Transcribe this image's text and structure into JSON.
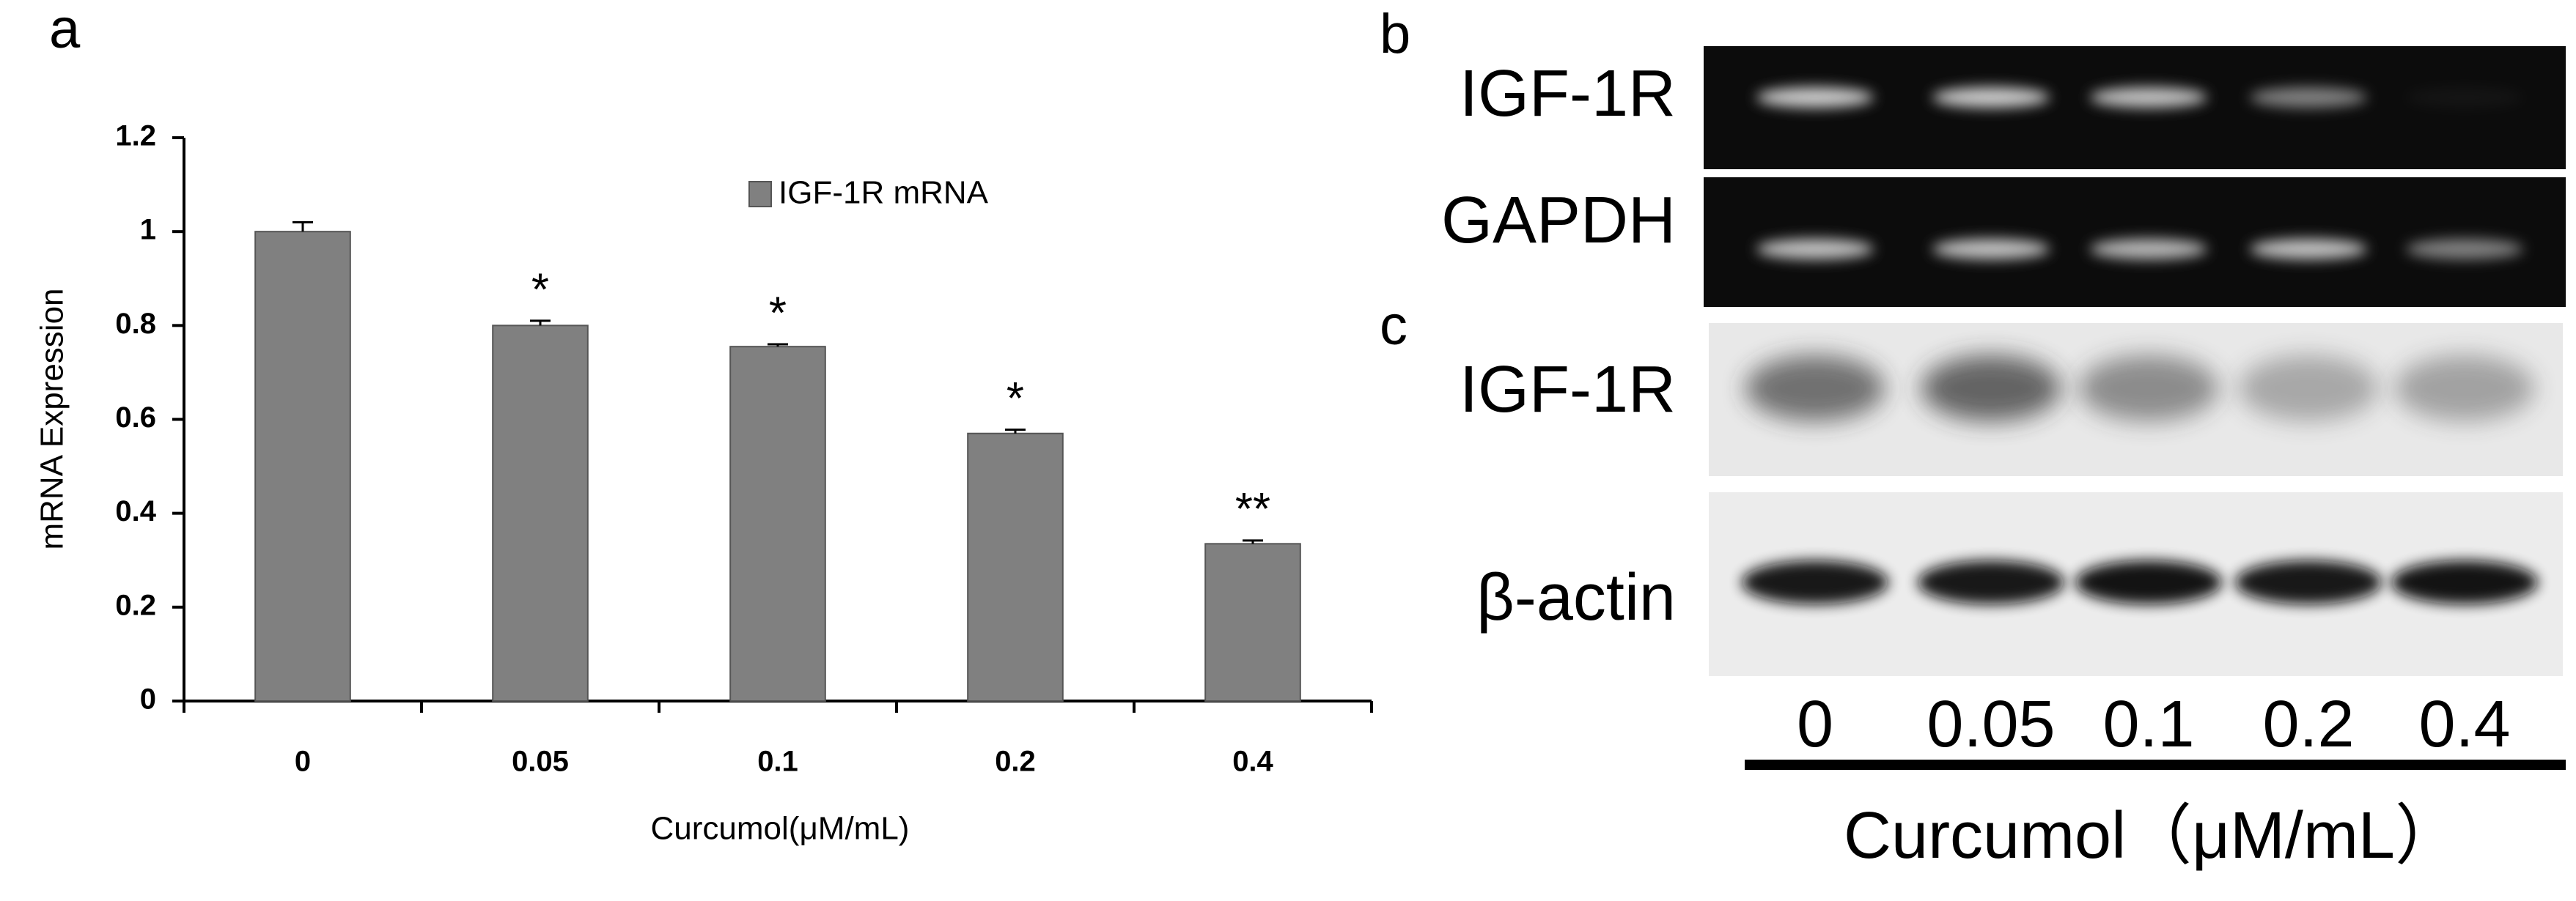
{
  "chart_data": {
    "type": "bar",
    "categories": [
      "0",
      "0.05",
      "0.1",
      "0.2",
      "0.4"
    ],
    "series": [
      {
        "name": "IGF-1R mRNA",
        "color": "#808080",
        "values": [
          1,
          0.8,
          0.755,
          0.57,
          0.335
        ],
        "errors": [
          0.02,
          0.01,
          0.005,
          0.008,
          0.007
        ]
      }
    ],
    "annotations": [
      null,
      "*",
      "*",
      "*",
      "**"
    ],
    "xlabel": "Curcumol(μM/mL)",
    "ylabel": "mRNA Expression",
    "ylim": [
      0,
      1.2
    ],
    "yticks": [
      0,
      0.2,
      0.4,
      0.6,
      0.8,
      1,
      1.2
    ],
    "legend": "upper center"
  },
  "panels": {
    "a": "a",
    "b": "b",
    "c": "c"
  },
  "gel_b": {
    "rows": [
      "IGF-1R",
      "GAPDH"
    ]
  },
  "gel_c": {
    "rows": [
      "IGF-1R",
      "β-actin"
    ],
    "lanes": [
      "0",
      "0.05",
      "0.1",
      "0.2",
      "0.4"
    ],
    "xlabel": "Curcumol（μM/mL）"
  }
}
